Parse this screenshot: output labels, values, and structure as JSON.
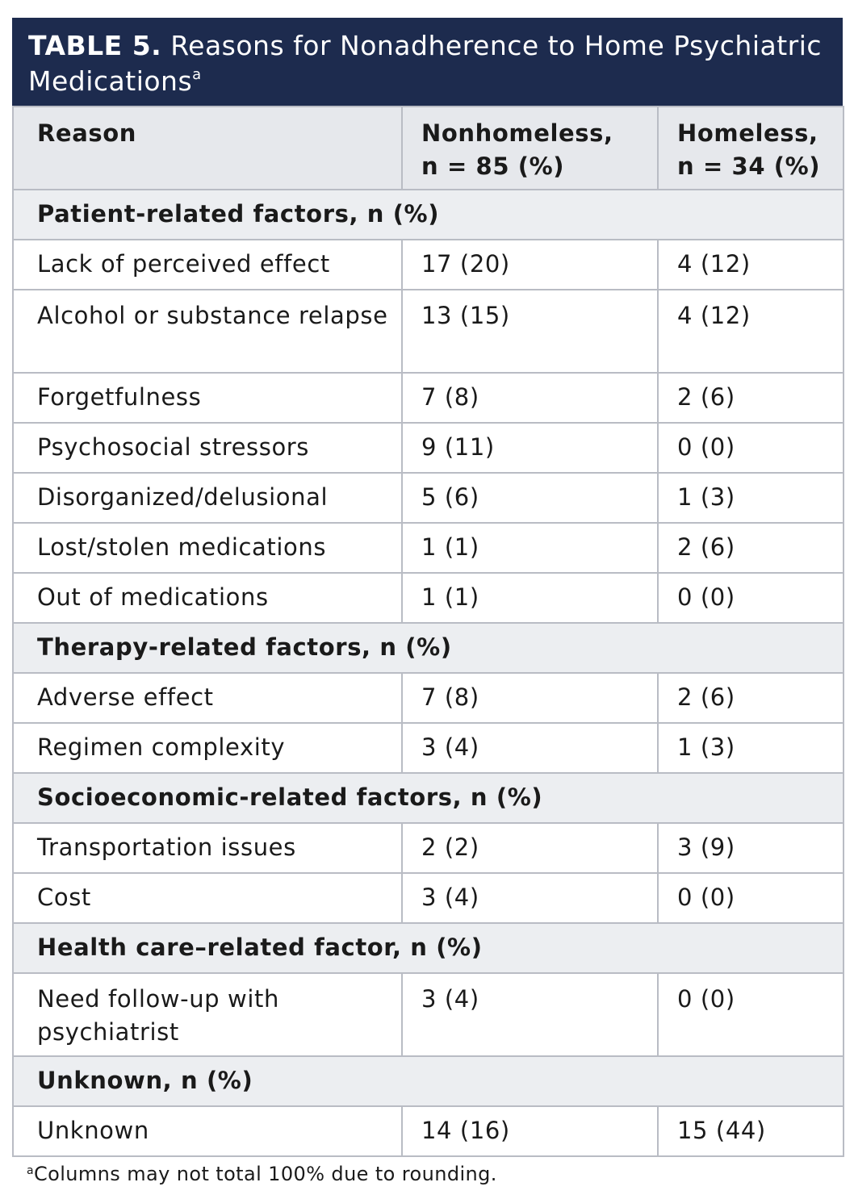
{
  "title": {
    "label": "TABLE 5.",
    "text": " Reasons for Nonadherence to Home Psychiatric Medications",
    "superscript": "a"
  },
  "header": {
    "col1": "Reason",
    "col2_line1": "Nonhomeless,",
    "col2_line2": "n = 85 (%)",
    "col3_line1": "Homeless,",
    "col3_line2": "n = 34 (%)"
  },
  "sections": [
    {
      "title": "Patient-related factors, n (%)",
      "rows": [
        {
          "reason": "Lack of perceived effect",
          "nonhomeless": "17 (20)",
          "homeless": "4 (12)"
        },
        {
          "reason": "Alcohol or substance relapse",
          "nonhomeless": "13 (15)",
          "homeless": "4 (12)"
        },
        {
          "reason": "Forgetfulness",
          "nonhomeless": "7 (8)",
          "homeless": "2 (6)"
        },
        {
          "reason": "Psychosocial stressors",
          "nonhomeless": "9 (11)",
          "homeless": "0 (0)"
        },
        {
          "reason": "Disorganized/delusional",
          "nonhomeless": "5 (6)",
          "homeless": "1 (3)"
        },
        {
          "reason": "Lost/stolen medications",
          "nonhomeless": "1 (1)",
          "homeless": "2 (6)"
        },
        {
          "reason": "Out of medications",
          "nonhomeless": "1 (1)",
          "homeless": "0 (0)"
        }
      ]
    },
    {
      "title": "Therapy-related factors, n (%)",
      "rows": [
        {
          "reason": "Adverse effect",
          "nonhomeless": "7 (8)",
          "homeless": "2 (6)"
        },
        {
          "reason": "Regimen complexity",
          "nonhomeless": "3 (4)",
          "homeless": "1 (3)"
        }
      ]
    },
    {
      "title": "Socioeconomic-related factors, n (%)",
      "rows": [
        {
          "reason": "Transportation issues",
          "nonhomeless": "2 (2)",
          "homeless": "3 (9)"
        },
        {
          "reason": "Cost",
          "nonhomeless": "3 (4)",
          "homeless": "0 (0)"
        }
      ]
    },
    {
      "title": "Health care–related factor, n (%)",
      "rows": [
        {
          "reason": "Need follow-up with psychiatrist",
          "nonhomeless": "3 (4)",
          "homeless": "0 (0)"
        }
      ]
    },
    {
      "title": "Unknown, n (%)",
      "rows": [
        {
          "reason": "Unknown",
          "nonhomeless": "14 (16)",
          "homeless": "15 (44)"
        }
      ]
    }
  ],
  "footnote": {
    "marker": "a",
    "text": "Columns may not total 100% due to rounding."
  },
  "colors": {
    "title_bar": "#1d2b4e",
    "header_bg": "#e6e8ec",
    "section_bg": "#eceef1",
    "border": "#b9bcc4"
  }
}
